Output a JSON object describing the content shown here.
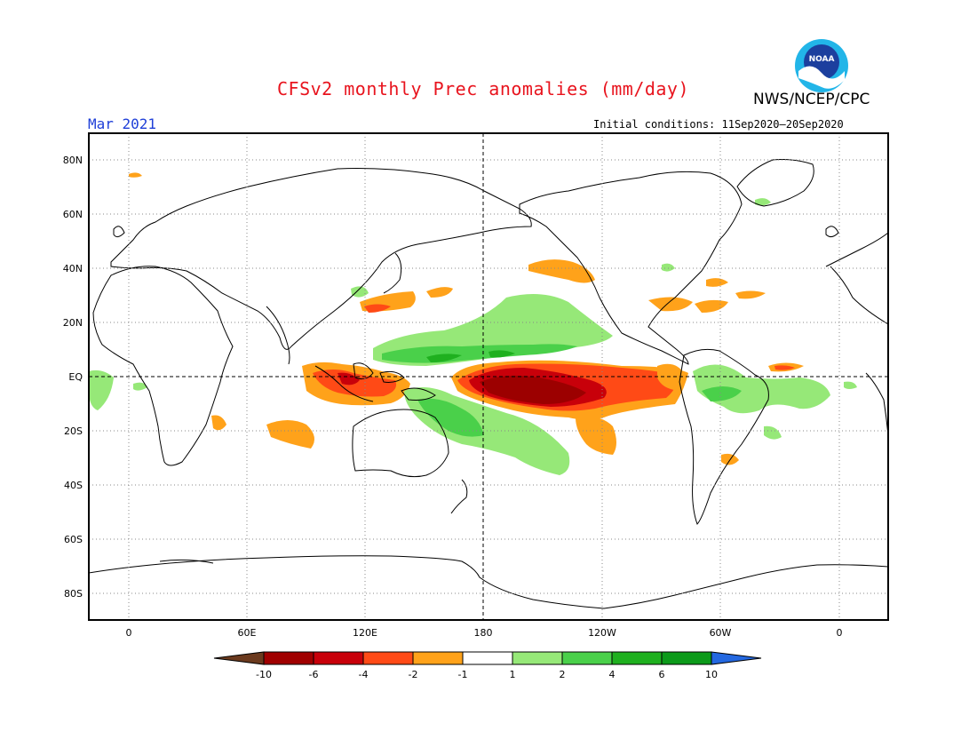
{
  "header": {
    "title": "CFSv2 monthly Prec anomalies (mm/day)",
    "agency": "NWS/NCEP/CPC",
    "valid_month": "Mar 2021",
    "initial_conditions": "Initial conditions: 11Sep2020–20Sep2020",
    "logo_text": "NOAA"
  },
  "map": {
    "projection": "equirectangular",
    "lon_range": [
      -20,
      380
    ],
    "lat_range": [
      -90,
      90
    ],
    "lat_ticks": [
      "80N",
      "60N",
      "40N",
      "20N",
      "EQ",
      "20S",
      "40S",
      "60S",
      "80S"
    ],
    "lon_ticks": [
      "0",
      "60E",
      "120E",
      "180",
      "120W",
      "60W",
      "0"
    ]
  },
  "legend": {
    "labels": [
      "-10",
      "-6",
      "-4",
      "-2",
      "-1",
      "1",
      "2",
      "4",
      "6",
      "10"
    ],
    "colors": [
      "#6b3a1e",
      "#a00000",
      "#c8000a",
      "#ff4a16",
      "#ffa21a",
      "#ffffff",
      "#96e878",
      "#4ad04a",
      "#1fb01f",
      "#0c9a1a",
      "#2468e0"
    ]
  },
  "anomalies": [
    {
      "name": "central-pacific-dry-core",
      "color": "#9c0000",
      "lon": 195,
      "lat": -3
    },
    {
      "name": "central-pacific-dry",
      "color": "#ff4a16",
      "lon": 210,
      "lat": -5
    },
    {
      "name": "maritime-continent-dry",
      "color": "#ff4a16",
      "lon": 118,
      "lat": -4
    },
    {
      "name": "north-pacific-wet",
      "color": "#4ad04a",
      "lon": 170,
      "lat": 7
    },
    {
      "name": "south-pacific-wet",
      "color": "#96e878",
      "lon": 170,
      "lat": -20
    },
    {
      "name": "south-america-wet",
      "color": "#96e878",
      "lon": 305,
      "lat": -5
    }
  ]
}
